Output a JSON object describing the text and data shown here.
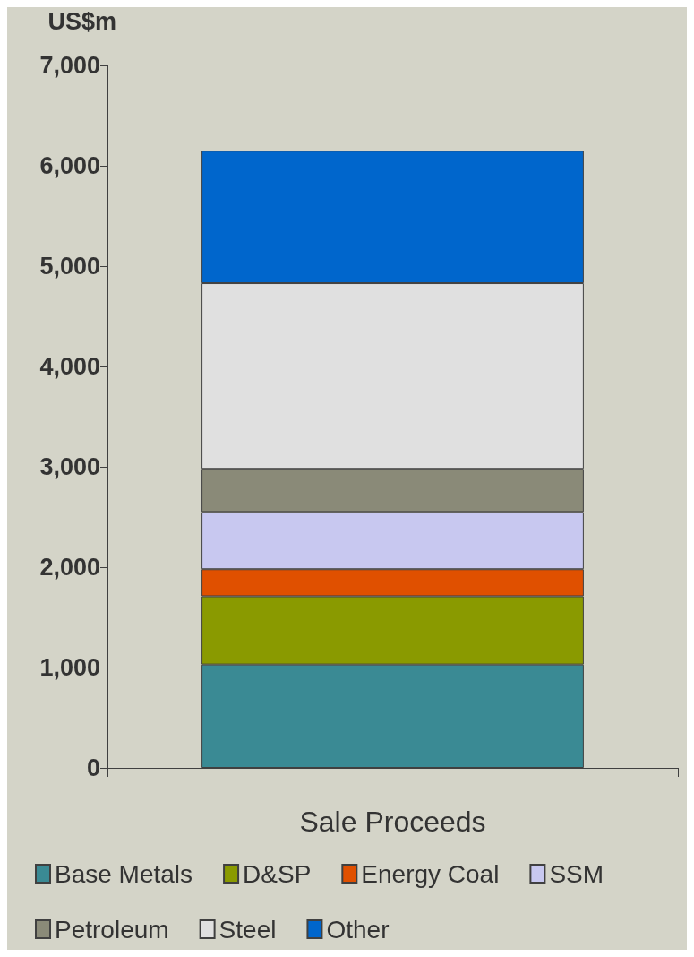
{
  "chart_data": {
    "type": "bar",
    "ylabel": "US$m",
    "categories": [
      "Sale Proceeds"
    ],
    "stacked": true,
    "ylim": [
      0,
      7000
    ],
    "yticks": [
      0,
      {
        "value": 1000,
        "label": "1,000"
      },
      {
        "value": 2000,
        "label": "2,000"
      },
      {
        "value": 3000,
        "label": "3,000"
      },
      {
        "value": 4000,
        "label": "4,000"
      },
      {
        "value": 5000,
        "label": "5,000"
      },
      {
        "value": 6000,
        "label": "6,000"
      },
      {
        "value": 7000,
        "label": "7,000"
      }
    ],
    "grid": false,
    "legend": "bottom",
    "series": [
      {
        "name": "Base Metals",
        "color": "#3a8a94",
        "values": [
          1030
        ]
      },
      {
        "name": "D&SP",
        "color": "#8a9a00",
        "values": [
          680
        ]
      },
      {
        "name": "Energy Coal",
        "color": "#e05000",
        "values": [
          270
        ]
      },
      {
        "name": "SSM",
        "color": "#c8c8f0",
        "values": [
          570
        ]
      },
      {
        "name": "Petroleum",
        "color": "#8a8a78",
        "values": [
          430
        ]
      },
      {
        "name": "Steel",
        "color": "#e0e0e0",
        "values": [
          1850
        ]
      },
      {
        "name": "Other",
        "color": "#0066cc",
        "values": [
          1320
        ]
      }
    ]
  }
}
